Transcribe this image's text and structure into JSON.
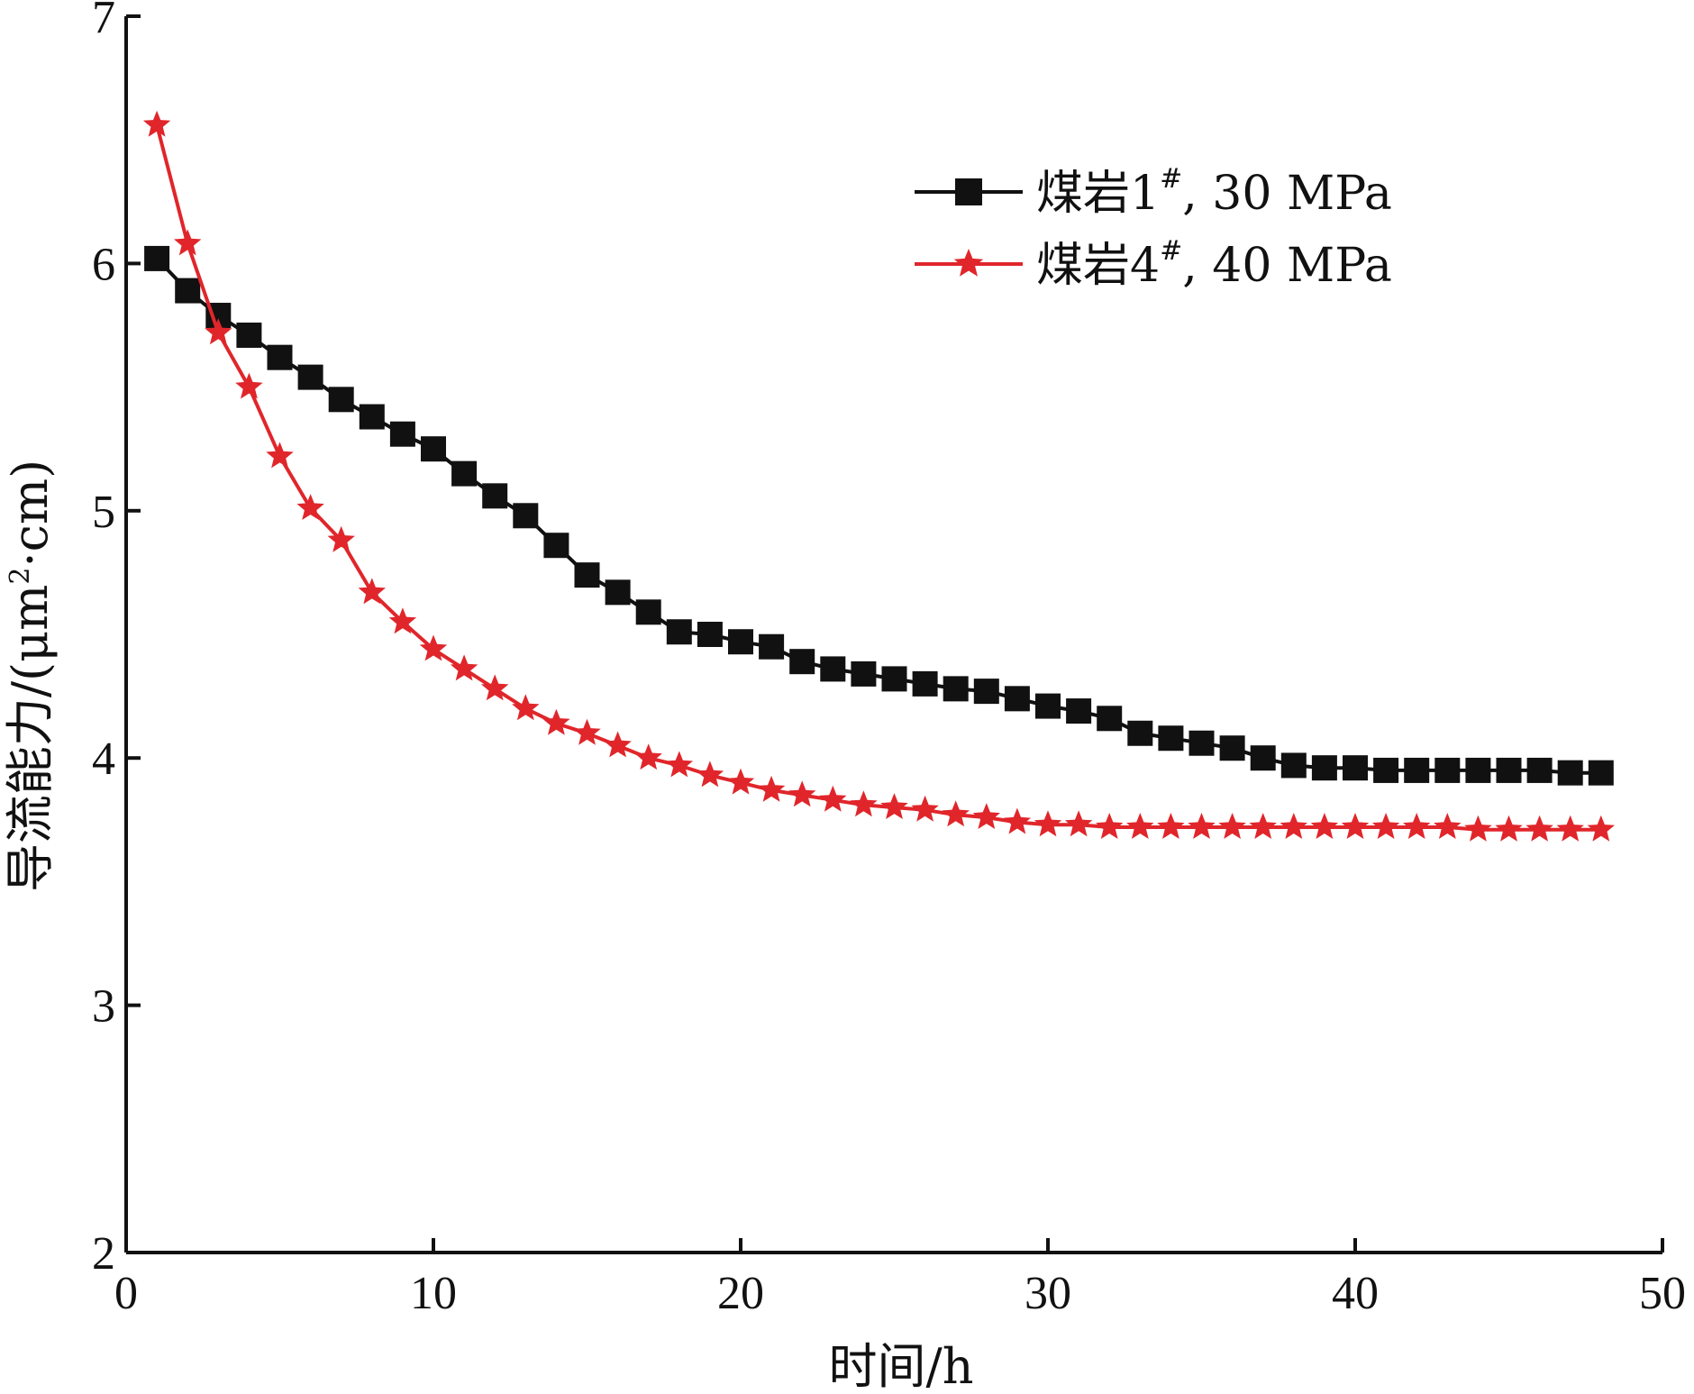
{
  "chart_data": {
    "type": "line",
    "title": "",
    "xlabel": "时间/h",
    "ylabel_main": "导流能力/(μm",
    "ylabel_sup": "2",
    "ylabel_tail": "·cm)",
    "xlim": [
      0,
      50
    ],
    "ylim": [
      2,
      7
    ],
    "xticks": [
      0,
      10,
      20,
      30,
      40,
      50
    ],
    "yticks": [
      2,
      3,
      4,
      5,
      6,
      7
    ],
    "grid": false,
    "legend_position": "top-right",
    "series": [
      {
        "name": "煤岩1#, 30 MPa",
        "label_prefix": "煤岩1",
        "label_sup": "#",
        "label_suffix": ", 30 MPa",
        "color": "#111111",
        "marker": "square",
        "x": [
          1,
          2,
          3,
          4,
          5,
          6,
          7,
          8,
          9,
          10,
          11,
          12,
          13,
          14,
          15,
          16,
          17,
          18,
          19,
          20,
          21,
          22,
          23,
          24,
          25,
          26,
          27,
          28,
          29,
          30,
          31,
          32,
          33,
          34,
          35,
          36,
          37,
          38,
          39,
          40,
          41,
          42,
          43,
          44,
          45,
          46,
          47,
          48
        ],
        "y": [
          6.02,
          5.89,
          5.79,
          5.71,
          5.62,
          5.54,
          5.45,
          5.38,
          5.31,
          5.25,
          5.15,
          5.06,
          4.98,
          4.86,
          4.74,
          4.67,
          4.59,
          4.51,
          4.5,
          4.47,
          4.45,
          4.39,
          4.36,
          4.34,
          4.32,
          4.3,
          4.28,
          4.27,
          4.24,
          4.21,
          4.19,
          4.16,
          4.1,
          4.08,
          4.06,
          4.04,
          4.0,
          3.97,
          3.96,
          3.96,
          3.95,
          3.95,
          3.95,
          3.95,
          3.95,
          3.95,
          3.94,
          3.94
        ]
      },
      {
        "name": "煤岩4#, 40 MPa",
        "label_prefix": "煤岩4",
        "label_sup": "#",
        "label_suffix": ", 40 MPa",
        "color": "#e0262b",
        "marker": "star",
        "x": [
          1,
          2,
          3,
          4,
          5,
          6,
          7,
          8,
          9,
          10,
          11,
          12,
          13,
          14,
          15,
          16,
          17,
          18,
          19,
          20,
          21,
          22,
          23,
          24,
          25,
          26,
          27,
          28,
          29,
          30,
          31,
          32,
          33,
          34,
          35,
          36,
          37,
          38,
          39,
          40,
          41,
          42,
          43,
          44,
          45,
          46,
          47,
          48
        ],
        "y": [
          6.56,
          6.08,
          5.72,
          5.5,
          5.22,
          5.01,
          4.88,
          4.67,
          4.55,
          4.44,
          4.36,
          4.28,
          4.2,
          4.14,
          4.1,
          4.05,
          4.0,
          3.97,
          3.93,
          3.9,
          3.87,
          3.85,
          3.83,
          3.81,
          3.8,
          3.79,
          3.77,
          3.76,
          3.74,
          3.73,
          3.73,
          3.72,
          3.72,
          3.72,
          3.72,
          3.72,
          3.72,
          3.72,
          3.72,
          3.72,
          3.72,
          3.72,
          3.72,
          3.71,
          3.71,
          3.71,
          3.71,
          3.71
        ]
      }
    ]
  }
}
